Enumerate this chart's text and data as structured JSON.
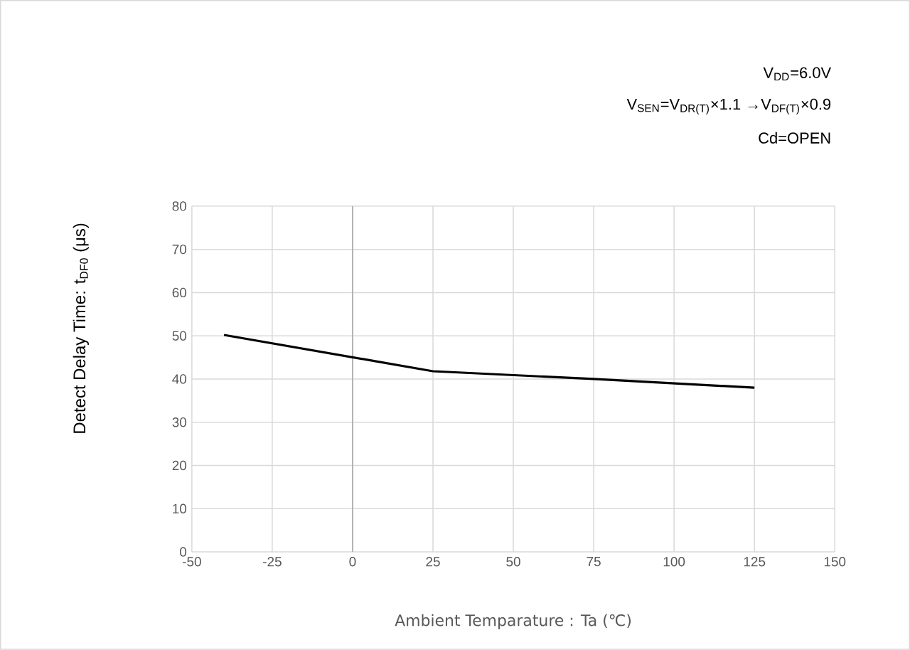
{
  "chart_data": {
    "type": "line",
    "xlabel": "Ambient Temparature : Ta (℃)",
    "ylabel": "Detect Delay Time: t$_{DF0}$ (μs)",
    "annotations": [
      "V$_{DD}$=6.0V",
      "V$_{SEN}$=V$_{DR(T)}$×1.1 →V$_{DF(T)}$×0.9",
      "Cd=OPEN"
    ],
    "x": [
      -40,
      25,
      75,
      125
    ],
    "series": [
      {
        "color": "#000000",
        "values": [
          50.2,
          41.8,
          40,
          38
        ]
      }
    ],
    "xlim": [
      -50,
      150
    ],
    "xticks": [
      -50,
      -25,
      0,
      25,
      50,
      75,
      100,
      125,
      150
    ],
    "ylim": [
      0,
      80
    ],
    "yticks": [
      0,
      10,
      20,
      30,
      40,
      50,
      60,
      70,
      80
    ],
    "grid": true,
    "marker": "none",
    "line_style": "solid",
    "ref_lines": [
      {
        "axis": "x",
        "value": 0,
        "color": "#a6a6a6"
      }
    ]
  }
}
